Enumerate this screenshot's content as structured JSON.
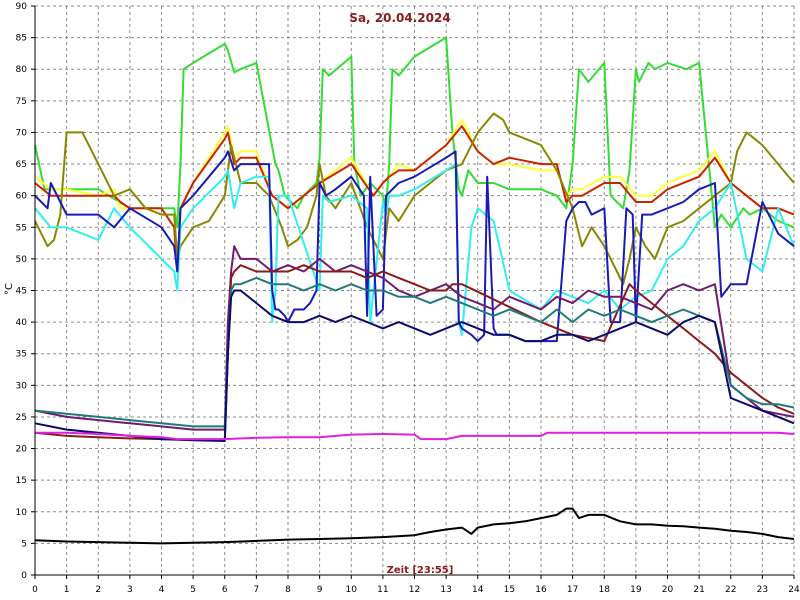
{
  "chart_data": {
    "type": "line",
    "title": "Sa, 20.04.2024",
    "xlabel": "Zeit [23:55]",
    "ylabel": "°C",
    "xlim": [
      0,
      24
    ],
    "ylim": [
      0,
      90
    ],
    "xticks": [
      0,
      1,
      2,
      3,
      4,
      5,
      6,
      7,
      8,
      9,
      10,
      11,
      12,
      13,
      14,
      15,
      16,
      17,
      18,
      19,
      20,
      21,
      22,
      23,
      24
    ],
    "yticks": [
      0,
      5,
      10,
      15,
      20,
      25,
      30,
      35,
      40,
      45,
      50,
      55,
      60,
      65,
      70,
      75,
      80,
      85,
      90
    ],
    "grid": true,
    "series": [
      {
        "color": "#33dd33",
        "x": [
          0,
          0.3,
          0.6,
          1,
          2,
          3,
          4,
          4.4,
          4.5,
          4.6,
          4.7,
          5,
          6,
          6.1,
          6.3,
          6.5,
          7,
          7.6,
          7.7,
          7.9,
          8.3,
          8.5,
          8.9,
          9,
          9.1,
          9.3,
          10,
          10.1,
          10.3,
          10.6,
          11,
          11.1,
          11.2,
          11.3,
          11.5,
          12,
          13,
          13.2,
          13.4,
          13.5,
          13.7,
          14,
          14.4,
          14.5,
          15,
          16,
          16.5,
          16.8,
          17,
          17.2,
          17.5,
          18,
          18.2,
          18.6,
          18.8,
          19,
          19.1,
          19.4,
          19.6,
          20,
          20.6,
          21,
          21.5,
          21.7,
          22,
          22.4,
          22.6,
          23,
          23.5,
          24
        ],
        "y": [
          68,
          61,
          61,
          61,
          61,
          58,
          58,
          58,
          55,
          65,
          80,
          81,
          84,
          83,
          79.5,
          80,
          81,
          65,
          64,
          60,
          58,
          60,
          62,
          66,
          80,
          79,
          82,
          65,
          60,
          62,
          60,
          58,
          65,
          80,
          79,
          82,
          85,
          70,
          61,
          60,
          64,
          62,
          62,
          62,
          61,
          61,
          60,
          58,
          65,
          80,
          78,
          81,
          60,
          58,
          64,
          80,
          78,
          81,
          80,
          81,
          80,
          81,
          55,
          57,
          55,
          58,
          57,
          58,
          56,
          55
        ]
      },
      {
        "color": "#ffff33",
        "x": [
          0,
          0.5,
          1,
          2,
          2.5,
          2.7,
          3,
          4,
          4.4,
          4.5,
          4.6,
          5,
          6,
          6.1,
          6.3,
          6.5,
          7,
          7.5,
          8,
          9,
          10,
          10.7,
          11,
          11.2,
          11.5,
          12,
          13,
          13.5,
          14,
          14.5,
          15,
          16,
          16.5,
          16.8,
          17,
          17.3,
          18,
          18.5,
          19,
          19.5,
          20,
          21,
          21.5,
          22,
          22.5,
          23,
          23.5,
          24
        ],
        "y": [
          63,
          61,
          61,
          60,
          61,
          58,
          58,
          58,
          55,
          48,
          58,
          62,
          70,
          71,
          66,
          67,
          67,
          60,
          58,
          62,
          66,
          60,
          62,
          63,
          65,
          64,
          68,
          72,
          67,
          65,
          65,
          64,
          64,
          60,
          61,
          61,
          63,
          63,
          60,
          60,
          62,
          64,
          67,
          62,
          60,
          58,
          58,
          57
        ]
      },
      {
        "color": "#cc2200",
        "x": [
          0,
          0.5,
          1,
          2,
          2.5,
          2.7,
          3,
          4,
          4.4,
          4.5,
          4.6,
          5,
          6,
          6.1,
          6.3,
          6.5,
          7,
          7.5,
          8,
          9,
          10,
          10.7,
          11,
          11.2,
          11.5,
          12,
          13,
          13.5,
          14,
          14.5,
          15,
          16,
          16.5,
          16.8,
          17,
          17.3,
          18,
          18.5,
          19,
          19.5,
          20,
          21,
          21.5,
          22,
          22.5,
          23,
          23.5,
          24
        ],
        "y": [
          62,
          60,
          60,
          60,
          60,
          59,
          58,
          58,
          55,
          48,
          58,
          62,
          69,
          70,
          65,
          66,
          66,
          60,
          58,
          62,
          65,
          60,
          62,
          63,
          64,
          64,
          68,
          71,
          67,
          65,
          66,
          65,
          65,
          59,
          60,
          60,
          62,
          62,
          59,
          59,
          61,
          63,
          66,
          62,
          60,
          58,
          58,
          57
        ]
      },
      {
        "color": "#888800",
        "x": [
          0,
          0.2,
          0.4,
          0.6,
          0.8,
          1,
          1.5,
          2,
          2.5,
          3,
          3.5,
          4,
          4.4,
          4.5,
          4.6,
          5,
          5.5,
          6,
          6.2,
          6.5,
          7,
          7.4,
          7.8,
          8,
          8.3,
          8.6,
          8.9,
          9,
          9.2,
          9.5,
          10,
          10.5,
          11,
          11.2,
          11.5,
          12,
          12.5,
          13,
          13.5,
          14,
          14.5,
          14.8,
          15,
          16,
          16.5,
          17,
          17.3,
          17.6,
          18,
          18.4,
          18.6,
          18.8,
          19,
          19.3,
          19.6,
          20,
          20.5,
          21,
          21.5,
          22,
          22.2,
          22.5,
          23,
          23.5,
          24
        ],
        "y": [
          56,
          54,
          52,
          53,
          57,
          70,
          70,
          65,
          60,
          61,
          58,
          57,
          57,
          50,
          52,
          55,
          56,
          60,
          68,
          62,
          62,
          60,
          55,
          52,
          53,
          55,
          60,
          65,
          60,
          58,
          62,
          55,
          50,
          58,
          56,
          60,
          62,
          64,
          65,
          70,
          73,
          72,
          70,
          68,
          64,
          58,
          52,
          55,
          52,
          48,
          46,
          50,
          55,
          52,
          50,
          55,
          56,
          58,
          60,
          62,
          67,
          70,
          68,
          65,
          62
        ]
      },
      {
        "color": "#33eeee",
        "x": [
          0,
          0.5,
          1,
          2,
          2.5,
          3,
          4,
          4.4,
          4.5,
          4.6,
          5,
          6,
          6.1,
          6.3,
          6.5,
          7,
          7.4,
          7.5,
          7.6,
          7.7,
          8,
          9,
          9.1,
          9.3,
          10,
          10.5,
          10.6,
          11,
          11.1,
          11.2,
          11.5,
          12,
          13,
          13.3,
          13.4,
          13.5,
          13.8,
          14,
          14.5,
          15,
          16,
          16.5,
          17,
          17.5,
          18,
          18.5,
          19,
          19.5,
          20,
          20.5,
          21,
          21.5,
          22,
          22.5,
          23,
          23.5,
          24
        ],
        "y": [
          58,
          55,
          55,
          53,
          58,
          55,
          50,
          48,
          45,
          55,
          58,
          63,
          64,
          58,
          62,
          63,
          63,
          40,
          45,
          60,
          60,
          45,
          60,
          59,
          60,
          58,
          40,
          59,
          57,
          60,
          60,
          61,
          64,
          65,
          40,
          38,
          55,
          58,
          56,
          45,
          42,
          45,
          44,
          43,
          45,
          42,
          44,
          45,
          50,
          52,
          56,
          58,
          62,
          50,
          48,
          58,
          52
        ]
      },
      {
        "color": "#1a1ab8",
        "x": [
          0,
          0.4,
          0.5,
          1,
          2,
          2.5,
          3,
          4,
          4.4,
          4.5,
          4.6,
          5,
          6,
          6.1,
          6.3,
          6.5,
          7,
          7.4,
          7.5,
          7.6,
          7.7,
          7.9,
          8,
          8.2,
          8.5,
          8.7,
          8.9,
          9,
          9.2,
          9.5,
          10,
          10.4,
          10.5,
          10.6,
          10.8,
          11,
          11.1,
          11.3,
          11.5,
          12,
          13,
          13.3,
          13.4,
          13.5,
          13.8,
          14,
          14.2,
          14.3,
          14.5,
          14.6,
          14.8,
          15,
          15.5,
          16,
          16.5,
          16.8,
          17,
          17.2,
          17.4,
          17.6,
          18,
          18.2,
          18.5,
          18.7,
          18.9,
          19,
          19.2,
          19.5,
          20,
          20.5,
          21,
          21.5,
          21.7,
          22,
          22.5,
          23,
          23.5,
          24
        ],
        "y": [
          60,
          58,
          62,
          57,
          57,
          55,
          58,
          55,
          52,
          48,
          58,
          60,
          66,
          67,
          64,
          65,
          65,
          65,
          45,
          42,
          42,
          41,
          40,
          42,
          42,
          43,
          45,
          62,
          60,
          61,
          63,
          60,
          41,
          63,
          41,
          42,
          60,
          61,
          62,
          63,
          66,
          67,
          40,
          39,
          38,
          37,
          38,
          63,
          39,
          38,
          38,
          38,
          37,
          37,
          37,
          56,
          58,
          59,
          59,
          57,
          58,
          40,
          40,
          58,
          57,
          40,
          57,
          57,
          58,
          59,
          61,
          62,
          44,
          46,
          46,
          59,
          54,
          52
        ]
      },
      {
        "color": "#701a70",
        "x": [
          0,
          1,
          2,
          3,
          4,
          5,
          6,
          6.1,
          6.2,
          6.3,
          6.5,
          7,
          7.5,
          8,
          8.5,
          9,
          9.5,
          10,
          10.5,
          11,
          11.5,
          12,
          12.5,
          13,
          13.5,
          14,
          14.5,
          15,
          15.5,
          16,
          16.5,
          17,
          17.5,
          18,
          18.5,
          19,
          19.5,
          20,
          20.5,
          21,
          21.5,
          22,
          22.5,
          23,
          23.5,
          24
        ],
        "y": [
          26,
          25,
          24.5,
          24,
          23.5,
          23,
          23,
          40,
          48,
          52,
          50,
          50,
          48,
          49,
          48,
          50,
          48,
          49,
          48,
          47,
          45,
          44,
          45,
          46,
          44,
          43,
          42,
          44,
          43,
          42,
          44,
          43,
          45,
          44,
          44,
          43,
          42,
          45,
          46,
          45,
          46,
          30,
          28,
          26,
          25.5,
          25
        ]
      },
      {
        "color": "#8b1a1a",
        "x": [
          0,
          1,
          2,
          3,
          4,
          5,
          6,
          6.1,
          6.2,
          6.3,
          6.5,
          7,
          7.5,
          8,
          8.5,
          9,
          9.5,
          10,
          10.5,
          11,
          11.5,
          12,
          12.5,
          13,
          13.2,
          13.5,
          16,
          17,
          18,
          18.8,
          19,
          19.5,
          20,
          20.5,
          21,
          21.5,
          22,
          22.5,
          23,
          23.5,
          24
        ],
        "y": [
          22.5,
          22,
          21.8,
          21.6,
          21.5,
          21.4,
          21.4,
          35,
          47,
          48,
          49,
          48,
          48,
          48,
          49,
          48,
          48,
          48,
          47,
          48,
          47,
          46,
          45,
          45,
          46,
          46,
          40,
          38,
          37,
          46,
          45,
          43,
          41,
          39,
          37,
          35,
          32,
          30,
          28,
          26.5,
          25.5
        ]
      },
      {
        "color": "#207a7a",
        "x": [
          0,
          1,
          2,
          3,
          4,
          5,
          6,
          6.1,
          6.2,
          6.3,
          6.5,
          7,
          7.5,
          8,
          8.5,
          9,
          9.5,
          10,
          10.5,
          11,
          11.5,
          12,
          12.5,
          13,
          13.5,
          14,
          14.5,
          15,
          15.5,
          16,
          16.5,
          17,
          17.5,
          18,
          18.5,
          19,
          19.5,
          20,
          20.5,
          21,
          21.5,
          22,
          22.5,
          23,
          23.5,
          24
        ],
        "y": [
          26,
          25.5,
          25,
          24.5,
          24,
          23.5,
          23.5,
          35,
          45,
          46,
          46,
          47,
          46,
          46,
          45,
          46,
          45,
          46,
          45,
          45,
          44,
          44,
          43,
          44,
          43,
          42,
          41,
          42,
          41,
          40,
          42,
          40,
          42,
          41,
          42,
          41,
          40,
          41,
          42,
          41,
          40,
          30,
          28,
          27,
          27,
          26.5
        ]
      },
      {
        "color": "#0a0a70",
        "x": [
          0,
          1,
          2,
          3,
          4,
          5,
          6,
          6.1,
          6.2,
          6.3,
          6.5,
          7,
          7.5,
          8,
          8.5,
          9,
          9.5,
          10,
          10.5,
          11,
          11.5,
          12,
          12.5,
          13,
          13.5,
          14,
          14.5,
          15,
          15.5,
          16,
          16.5,
          17,
          17.5,
          18,
          18.5,
          19,
          19.5,
          20,
          20.5,
          21,
          21.5,
          22,
          22.5,
          23,
          23.5,
          24
        ],
        "y": [
          24,
          23,
          22.5,
          22,
          21.5,
          21.3,
          21.2,
          35,
          44,
          45,
          45,
          43,
          41,
          40,
          40,
          41,
          40,
          41,
          40,
          39,
          40,
          39,
          38,
          39,
          40,
          39,
          38,
          38,
          37,
          37,
          38,
          38,
          37,
          38,
          39,
          40,
          39,
          38,
          40,
          41,
          40,
          28,
          27,
          26,
          25,
          24
        ]
      },
      {
        "color": "#dd22dd",
        "x": [
          0,
          1,
          2,
          3,
          4,
          4.5,
          5,
          6,
          7,
          8,
          9,
          9.5,
          10,
          11,
          12,
          12.2,
          13,
          13.5,
          14,
          15,
          16,
          16.2,
          17,
          18,
          19,
          20,
          21,
          22,
          23,
          23.5,
          24
        ],
        "y": [
          22.5,
          22.5,
          22.3,
          22,
          21.8,
          21.5,
          21.5,
          21.5,
          21.7,
          21.8,
          21.8,
          22,
          22.2,
          22.3,
          22.2,
          21.5,
          21.5,
          22,
          22,
          22,
          22,
          22.5,
          22.5,
          22.5,
          22.5,
          22.5,
          22.5,
          22.5,
          22.5,
          22.5,
          22.3
        ]
      },
      {
        "color": "#000000",
        "x": [
          0,
          1,
          2,
          3,
          4,
          5,
          6,
          7,
          8,
          9,
          10,
          11,
          12,
          12.5,
          13,
          13.5,
          13.8,
          14,
          14.5,
          15,
          15.5,
          16,
          16.5,
          16.8,
          17,
          17.2,
          17.5,
          18,
          18.5,
          19,
          19.5,
          20,
          20.5,
          21,
          21.5,
          22,
          22.5,
          23,
          23.5,
          24
        ],
        "y": [
          5.5,
          5.3,
          5.2,
          5.1,
          5,
          5.1,
          5.2,
          5.4,
          5.6,
          5.7,
          5.8,
          6,
          6.3,
          6.8,
          7.2,
          7.5,
          6.5,
          7.5,
          8,
          8.2,
          8.5,
          9,
          9.5,
          10.5,
          10.5,
          9,
          9.5,
          9.5,
          8.5,
          8,
          8,
          7.8,
          7.7,
          7.5,
          7.3,
          7,
          6.8,
          6.5,
          6,
          5.7
        ]
      }
    ]
  }
}
